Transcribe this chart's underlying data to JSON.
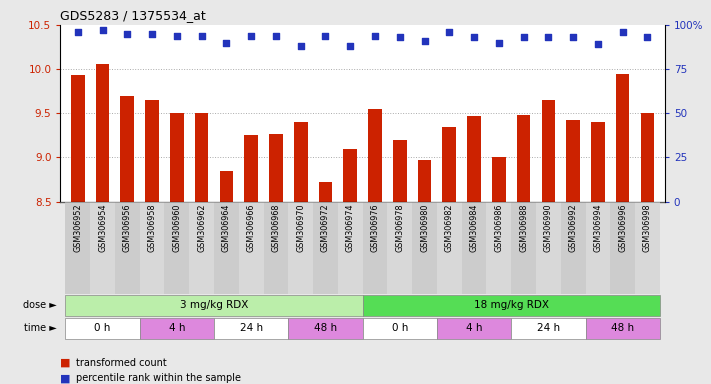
{
  "title": "GDS5283 / 1375534_at",
  "samples": [
    "GSM306952",
    "GSM306954",
    "GSM306956",
    "GSM306958",
    "GSM306960",
    "GSM306962",
    "GSM306964",
    "GSM306966",
    "GSM306968",
    "GSM306970",
    "GSM306972",
    "GSM306974",
    "GSM306976",
    "GSM306978",
    "GSM306980",
    "GSM306982",
    "GSM306984",
    "GSM306986",
    "GSM306988",
    "GSM306990",
    "GSM306992",
    "GSM306994",
    "GSM306996",
    "GSM306998"
  ],
  "bar_values": [
    9.93,
    10.06,
    9.7,
    9.65,
    9.5,
    9.5,
    8.85,
    9.25,
    9.27,
    9.4,
    8.72,
    9.1,
    9.55,
    9.2,
    8.97,
    9.35,
    9.47,
    9.0,
    9.48,
    9.65,
    9.42,
    9.4,
    9.95,
    9.5
  ],
  "percentile_values": [
    96,
    97,
    95,
    95,
    94,
    94,
    90,
    94,
    94,
    88,
    94,
    88,
    94,
    93,
    91,
    96,
    93,
    90,
    93,
    93,
    93,
    89,
    96,
    93
  ],
  "bar_color": "#cc2200",
  "dot_color": "#2233bb",
  "ylim_left": [
    8.5,
    10.5
  ],
  "ylim_right": [
    0,
    100
  ],
  "yticks_left": [
    8.5,
    9.0,
    9.5,
    10.0,
    10.5
  ],
  "yticks_right": [
    0,
    25,
    50,
    75,
    100
  ],
  "dose_groups": [
    {
      "label": "3 mg/kg RDX",
      "start": 0,
      "end": 12,
      "color": "#bbeeaa"
    },
    {
      "label": "18 mg/kg RDX",
      "start": 12,
      "end": 24,
      "color": "#55dd55"
    }
  ],
  "time_groups": [
    {
      "label": "0 h",
      "start": 0,
      "end": 3,
      "color": "#ffffff"
    },
    {
      "label": "4 h",
      "start": 3,
      "end": 6,
      "color": "#dd88dd"
    },
    {
      "label": "24 h",
      "start": 6,
      "end": 9,
      "color": "#ffffff"
    },
    {
      "label": "48 h",
      "start": 9,
      "end": 12,
      "color": "#dd88dd"
    },
    {
      "label": "0 h",
      "start": 12,
      "end": 15,
      "color": "#ffffff"
    },
    {
      "label": "4 h",
      "start": 15,
      "end": 18,
      "color": "#dd88dd"
    },
    {
      "label": "24 h",
      "start": 18,
      "end": 21,
      "color": "#ffffff"
    },
    {
      "label": "48 h",
      "start": 21,
      "end": 24,
      "color": "#dd88dd"
    }
  ],
  "legend_bar_label": "transformed count",
  "legend_dot_label": "percentile rank within the sample",
  "background_color": "#e8e8e8",
  "plot_bg_color": "#ffffff",
  "tick_bg_color": "#d8d8d8",
  "gridline_color": "#aaaaaa"
}
